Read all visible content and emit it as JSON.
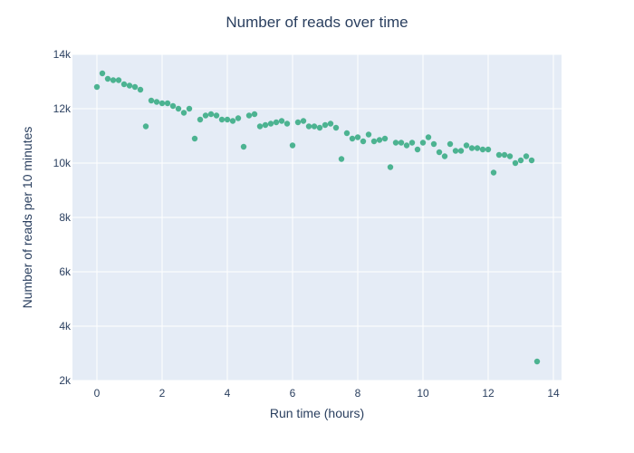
{
  "chart_data": {
    "type": "scatter",
    "title": "Number of reads over time",
    "xlabel": "Run time (hours)",
    "ylabel": "Number of reads per 10 minutes",
    "xlim": [
      -0.75,
      14.25
    ],
    "ylim": [
      2000,
      14000
    ],
    "x_ticks": [
      0,
      2,
      4,
      6,
      8,
      10,
      12,
      14
    ],
    "y_ticks": [
      2000,
      4000,
      6000,
      8000,
      10000,
      12000,
      14000
    ],
    "y_tick_labels": [
      "2k",
      "4k",
      "6k",
      "8k",
      "10k",
      "12k",
      "14k"
    ],
    "grid": true,
    "plot_background": "#e5ecf6",
    "grid_color": "#ffffff",
    "marker_color": "#4cb391",
    "text_color": "#2a3f5f",
    "series": [
      {
        "x": [
          0,
          0.1667,
          0.3333,
          0.5,
          0.6667,
          0.8333,
          1,
          1.1667,
          1.3333,
          1.5,
          1.6667,
          1.8333,
          2,
          2.1667,
          2.3333,
          2.5,
          2.6667,
          2.8333,
          3,
          3.1667,
          3.3333,
          3.5,
          3.6667,
          3.8333,
          4,
          4.1667,
          4.3333,
          4.5,
          4.6667,
          4.8333,
          5,
          5.1667,
          5.3333,
          5.5,
          5.6667,
          5.8333,
          6,
          6.1667,
          6.3333,
          6.5,
          6.6667,
          6.8333,
          7,
          7.1667,
          7.3333,
          7.5,
          7.6667,
          7.8333,
          8,
          8.1667,
          8.3333,
          8.5,
          8.6667,
          8.8333,
          9,
          9.1667,
          9.3333,
          9.5,
          9.6667,
          9.8333,
          10,
          10.1667,
          10.3333,
          10.5,
          10.6667,
          10.8333,
          11,
          11.1667,
          11.3333,
          11.5,
          11.6667,
          11.8333,
          12,
          12.1667,
          12.3333,
          12.5,
          12.6667,
          12.8333,
          13,
          13.1667,
          13.3333,
          13.5
        ],
        "y": [
          12800,
          13300,
          13100,
          13050,
          13050,
          12900,
          12850,
          12800,
          12700,
          11350,
          12300,
          12250,
          12200,
          12200,
          12100,
          12000,
          11850,
          12000,
          10900,
          11600,
          11750,
          11800,
          11750,
          11600,
          11600,
          11550,
          11650,
          10600,
          11750,
          11800,
          11350,
          11400,
          11450,
          11500,
          11550,
          11450,
          10650,
          11500,
          11550,
          11350,
          11350,
          11300,
          11400,
          11450,
          11300,
          10150,
          11100,
          10900,
          10950,
          10800,
          11050,
          10800,
          10850,
          10900,
          9850,
          10750,
          10750,
          10650,
          10750,
          10500,
          10750,
          10950,
          10700,
          10400,
          10250,
          10700,
          10450,
          10450,
          10650,
          10550,
          10550,
          10500,
          10500,
          9650,
          10300,
          10300,
          10250,
          10000,
          10100,
          10250,
          10100,
          2700
        ]
      }
    ]
  }
}
